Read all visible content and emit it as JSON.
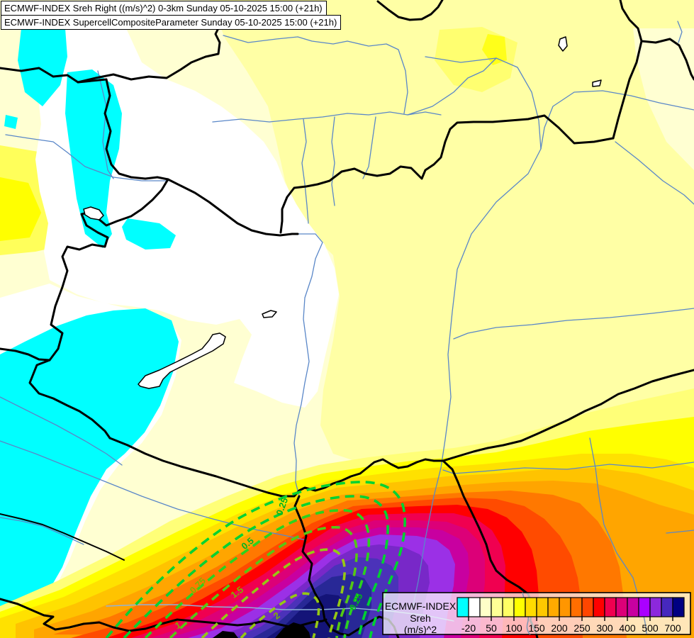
{
  "title_bar": {
    "line1": "ECMWF-INDEX Sreh Right ((m/s)^2) 0-3km Sunday 05-10-2025 15:00 (+21h)",
    "line2": "ECMWF-INDEX SupercellCompositeParameter Sunday 05-10-2025 15:00 (+21h)"
  },
  "legend": {
    "product": "ECMWF-INDEX",
    "parameter": "Sreh",
    "units": "(m/s)^2",
    "colors": [
      "#00FFFF",
      "#FFFFFF",
      "#FFFFC8",
      "#FFFF96",
      "#FFFF64",
      "#FFFF00",
      "#FFDC00",
      "#FFC800",
      "#FFAA00",
      "#FF9600",
      "#FF6E00",
      "#FF4600",
      "#FF0000",
      "#F00050",
      "#DC0078",
      "#C800A0",
      "#AA00FF",
      "#8C28DC",
      "#4628BE",
      "#000082"
    ],
    "ticks": [
      "-20",
      "50",
      "100",
      "150",
      "200",
      "250",
      "300",
      "400",
      "500",
      "700"
    ],
    "tick_boundary_indices": [
      1,
      3,
      5,
      7,
      9,
      11,
      13,
      15,
      17,
      19
    ]
  },
  "contours": {
    "parameter": "SupercellCompositeParameter",
    "labels": [
      {
        "text": "0.25"
      },
      {
        "text": "0.5"
      },
      {
        "text": "0.75"
      },
      {
        "text": "1"
      },
      {
        "text": "1.5"
      },
      {
        "text": "2"
      },
      {
        "text": "0.25"
      }
    ]
  },
  "map_colors": {
    "background_cream": "#FFFFD2",
    "pale_yellow": "#FFFFA5",
    "mid_yellow": "#FFFF70",
    "negative_cyan": "#00FFFF",
    "white_zone": "#FFFFFF",
    "country_border": "#000000",
    "river_blue": "#5A87C8",
    "river_slate": "#7C96B4",
    "contour_green_outer": "#00D232",
    "contour_green_inner": "#96C814",
    "hot_core_navy": "#141478",
    "hot_core_black": "#000000"
  }
}
